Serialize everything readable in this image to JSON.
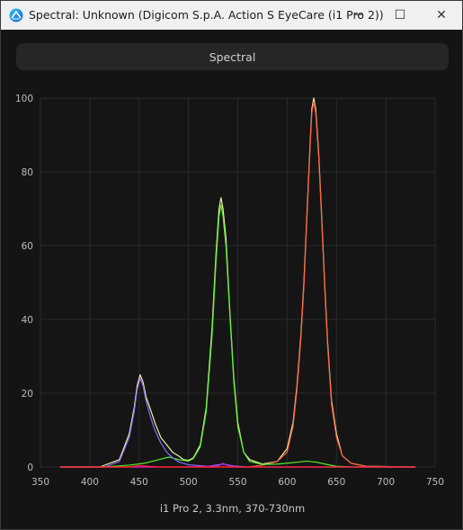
{
  "window": {
    "title": "Spectral: Unknown (Digicom S.p.A. Action S EyeCare (i1 Pro 2))",
    "buttons": {
      "minimize": "─",
      "maximize": "☐",
      "close": "✕"
    }
  },
  "toolbar": {
    "spectral_label": "Spectral"
  },
  "footer": {
    "caption": "i1 Pro 2, 3.3nm, 370-730nm"
  },
  "chart_data": {
    "type": "line",
    "title": "",
    "xlabel": "",
    "ylabel": "",
    "xlim": [
      350,
      750
    ],
    "ylim": [
      0,
      100
    ],
    "xticks": [
      350,
      400,
      450,
      500,
      550,
      600,
      650,
      700,
      750
    ],
    "yticks": [
      0,
      20,
      40,
      60,
      80,
      100
    ],
    "grid": true,
    "series": [
      {
        "color": "#f2f2a8",
        "points": [
          [
            370,
            0
          ],
          [
            410,
            0
          ],
          [
            430,
            2
          ],
          [
            440,
            9
          ],
          [
            445,
            16
          ],
          [
            448,
            22
          ],
          [
            451,
            25
          ],
          [
            454,
            23
          ],
          [
            457,
            19
          ],
          [
            461,
            16
          ],
          [
            466,
            12
          ],
          [
            472,
            8
          ],
          [
            478,
            6
          ],
          [
            484,
            4
          ],
          [
            490,
            3
          ],
          [
            495,
            2
          ],
          [
            500,
            1.8
          ],
          [
            505,
            2.5
          ],
          [
            512,
            6
          ],
          [
            518,
            16
          ],
          [
            524,
            38
          ],
          [
            528,
            58
          ],
          [
            531,
            70
          ],
          [
            533,
            73
          ],
          [
            535,
            70
          ],
          [
            538,
            62
          ],
          [
            542,
            42
          ],
          [
            546,
            24
          ],
          [
            550,
            12
          ],
          [
            556,
            4
          ],
          [
            562,
            2
          ],
          [
            575,
            0.8
          ],
          [
            590,
            1.5
          ],
          [
            600,
            5
          ],
          [
            606,
            12
          ],
          [
            610,
            22
          ],
          [
            614,
            36
          ],
          [
            617,
            50
          ],
          [
            620,
            68
          ],
          [
            623,
            86
          ],
          [
            625,
            97
          ],
          [
            627,
            100
          ],
          [
            629,
            97
          ],
          [
            632,
            85
          ],
          [
            635,
            68
          ],
          [
            638,
            50
          ],
          [
            641,
            34
          ],
          [
            645,
            18
          ],
          [
            650,
            9
          ],
          [
            656,
            3
          ],
          [
            665,
            1
          ],
          [
            680,
            0.2
          ],
          [
            730,
            0
          ]
        ]
      },
      {
        "color": "#ff5a3c",
        "points": [
          [
            370,
            0
          ],
          [
            560,
            0
          ],
          [
            575,
            0.5
          ],
          [
            590,
            1.5
          ],
          [
            600,
            4
          ],
          [
            606,
            11
          ],
          [
            610,
            21
          ],
          [
            614,
            35
          ],
          [
            617,
            49
          ],
          [
            620,
            67
          ],
          [
            623,
            85
          ],
          [
            625,
            96
          ],
          [
            627,
            99
          ],
          [
            629,
            96
          ],
          [
            632,
            84
          ],
          [
            635,
            67
          ],
          [
            638,
            49
          ],
          [
            641,
            33
          ],
          [
            645,
            17
          ],
          [
            650,
            8
          ],
          [
            656,
            3
          ],
          [
            665,
            1
          ],
          [
            680,
            0.2
          ],
          [
            730,
            0
          ]
        ]
      },
      {
        "color": "#55f02a",
        "points": [
          [
            370,
            0
          ],
          [
            415,
            0
          ],
          [
            440,
            0.5
          ],
          [
            455,
            1
          ],
          [
            470,
            2
          ],
          [
            480,
            2.7
          ],
          [
            490,
            2
          ],
          [
            500,
            1.6
          ],
          [
            505,
            2.3
          ],
          [
            512,
            5.5
          ],
          [
            518,
            15
          ],
          [
            524,
            36
          ],
          [
            528,
            56
          ],
          [
            531,
            68
          ],
          [
            533,
            71
          ],
          [
            535,
            68
          ],
          [
            538,
            60
          ],
          [
            542,
            41
          ],
          [
            546,
            23
          ],
          [
            550,
            11
          ],
          [
            556,
            4
          ],
          [
            562,
            1.5
          ],
          [
            575,
            0.7
          ],
          [
            590,
            0.8
          ],
          [
            610,
            1.3
          ],
          [
            620,
            1.6
          ],
          [
            630,
            1.3
          ],
          [
            640,
            0.7
          ],
          [
            650,
            0.2
          ],
          [
            670,
            0
          ],
          [
            730,
            0
          ]
        ]
      },
      {
        "color": "#8c6bff",
        "points": [
          [
            370,
            0
          ],
          [
            415,
            0
          ],
          [
            430,
            1.5
          ],
          [
            440,
            8
          ],
          [
            445,
            15
          ],
          [
            448,
            21
          ],
          [
            451,
            24
          ],
          [
            454,
            22
          ],
          [
            457,
            18
          ],
          [
            461,
            14
          ],
          [
            466,
            10
          ],
          [
            472,
            6.5
          ],
          [
            478,
            4
          ],
          [
            484,
            2.5
          ],
          [
            490,
            1.4
          ],
          [
            500,
            0.6
          ],
          [
            520,
            0.2
          ],
          [
            535,
            0.8
          ],
          [
            545,
            0.3
          ],
          [
            560,
            0
          ],
          [
            730,
            0
          ]
        ]
      },
      {
        "color": "#d01fe0",
        "points": [
          [
            370,
            0
          ],
          [
            500,
            0
          ],
          [
            530,
            0.3
          ],
          [
            535,
            1
          ],
          [
            540,
            0.4
          ],
          [
            550,
            0
          ],
          [
            730,
            0
          ]
        ]
      },
      {
        "color": "#ff2020",
        "points": [
          [
            370,
            0
          ],
          [
            440,
            0
          ],
          [
            450,
            0.4
          ],
          [
            460,
            0.2
          ],
          [
            470,
            0
          ],
          [
            730,
            0
          ]
        ]
      }
    ]
  }
}
